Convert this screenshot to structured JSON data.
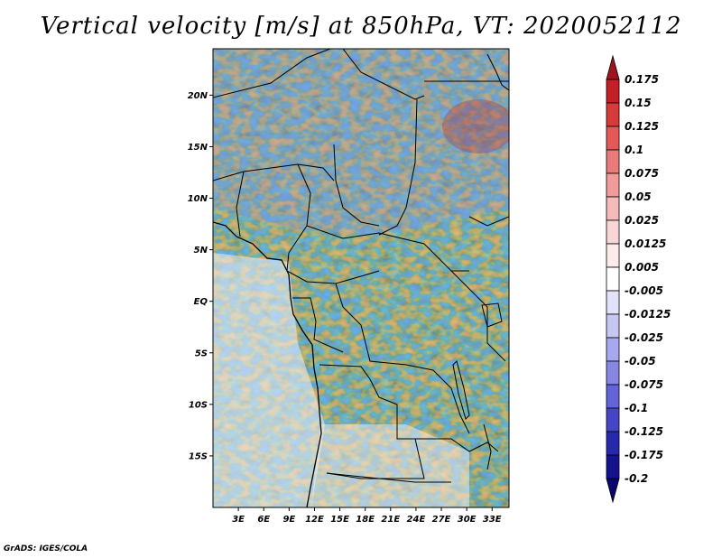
{
  "title": "Vertical velocity [m/s] at 850hPa, VT: 2020052112",
  "credit": "GrADS: IGES/COLA",
  "map": {
    "lat_labels": [
      "20N",
      "15N",
      "10N",
      "5N",
      "EQ",
      "5S",
      "10S",
      "15S"
    ],
    "lat_values": [
      20,
      15,
      10,
      5,
      0,
      -5,
      -10,
      -15
    ],
    "lon_labels": [
      "3E",
      "6E",
      "9E",
      "12E",
      "15E",
      "18E",
      "21E",
      "24E",
      "27E",
      "30E",
      "33E"
    ],
    "lon_values": [
      3,
      6,
      9,
      12,
      15,
      18,
      21,
      24,
      27,
      30,
      33
    ],
    "lon_range": [
      0,
      35
    ],
    "lat_range": [
      -20,
      24.5
    ]
  },
  "colorbar": {
    "labels": [
      "0.175",
      "0.15",
      "0.125",
      "0.1",
      "0.075",
      "0.05",
      "0.025",
      "0.0125",
      "0.005",
      "-0.005",
      "-0.0125",
      "-0.025",
      "-0.05",
      "-0.075",
      "-0.1",
      "-0.125",
      "-0.175",
      "-0.2"
    ],
    "colors": [
      "#a0141e",
      "#c21f27",
      "#d73a3b",
      "#e25958",
      "#ea7b7a",
      "#f09c9b",
      "#f5bbba",
      "#f9d6d5",
      "#fcebeb",
      "#ffffff",
      "#e2e2fb",
      "#c7c7f4",
      "#a8a8ee",
      "#8787e3",
      "#6464d8",
      "#4545c6",
      "#2828ad",
      "#14128c",
      "#0a0670"
    ]
  }
}
